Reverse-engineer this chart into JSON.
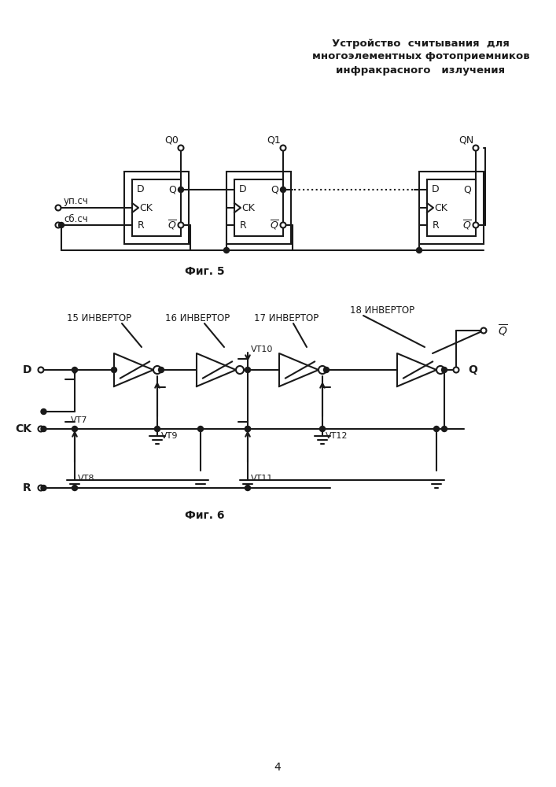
{
  "title_line1": "Устройство  считывания  для",
  "title_line2": "многоэлементных фотоприемников",
  "title_line3": "инфракрасного   излучения",
  "fig5_label": "Фиг. 5",
  "fig6_label": "Фиг. 6",
  "page_number": "4",
  "background_color": "#ffffff",
  "line_color": "#1a1a1a"
}
